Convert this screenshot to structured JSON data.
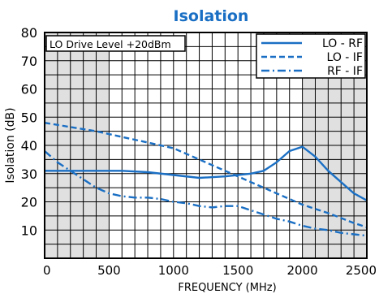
{
  "chart_data": {
    "type": "line",
    "title": "Isolation",
    "title_color": "#1a6fc4",
    "xlabel": "FREQUENCY (MHz)",
    "ylabel": "Isolation (dB)",
    "xlim": [
      0,
      2500
    ],
    "ylim": [
      0,
      80
    ],
    "xticks": [
      0,
      500,
      1000,
      1500,
      2000,
      2500
    ],
    "yticks": [
      10,
      20,
      30,
      40,
      50,
      60,
      70,
      80
    ],
    "grid": true,
    "shaded_x_ranges": [
      [
        0,
        500
      ],
      [
        2000,
        2500
      ]
    ],
    "shade_color": "#e0e0e0",
    "annotation": "LO Drive Level +20dBm",
    "legend_position": "top-right",
    "line_color": "#1a6fc4",
    "series": [
      {
        "name": "LO - RF",
        "dash": "solid",
        "x": [
          0,
          200,
          400,
          600,
          800,
          1000,
          1200,
          1400,
          1600,
          1700,
          1800,
          1900,
          2000,
          2100,
          2200,
          2300,
          2400,
          2500
        ],
        "y": [
          31,
          31,
          31,
          31,
          30.5,
          29.5,
          28.5,
          29,
          30,
          31,
          34,
          38,
          39.5,
          36,
          31,
          27,
          23,
          20.5
        ]
      },
      {
        "name": "LO - IF",
        "dash": "dashed",
        "x": [
          0,
          200,
          400,
          600,
          800,
          1000,
          1200,
          1400,
          1600,
          1800,
          2000,
          2200,
          2400,
          2500
        ],
        "y": [
          48,
          46.5,
          45,
          43,
          41,
          39,
          35,
          31,
          27,
          23,
          19,
          16,
          12.5,
          11
        ]
      },
      {
        "name": "RF - IF",
        "dash": "dashdot",
        "x": [
          0,
          100,
          200,
          300,
          400,
          500,
          600,
          700,
          800,
          900,
          1000,
          1100,
          1200,
          1300,
          1400,
          1500,
          1600,
          1700,
          1800,
          1900,
          2000,
          2100,
          2200,
          2300,
          2400,
          2500
        ],
        "y": [
          38,
          34,
          31,
          28,
          25,
          23,
          22,
          21.5,
          21.5,
          21,
          20,
          19.5,
          18.5,
          18,
          18.5,
          18.5,
          17,
          15.5,
          14,
          13,
          11.5,
          10.5,
          10,
          9,
          8.5,
          8
        ]
      }
    ]
  }
}
